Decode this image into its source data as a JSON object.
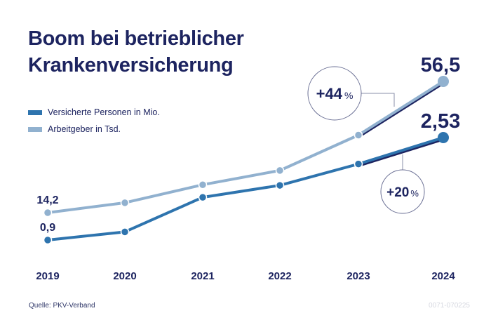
{
  "title_line1": "Boom bei betrieblicher",
  "title_line2": "Krankenversicherung",
  "source": "Quelle: PKV-Verband",
  "code": "0071-070225",
  "chart_data": {
    "type": "line",
    "categories": [
      "2019",
      "2020",
      "2021",
      "2022",
      "2023",
      "2024"
    ],
    "series": [
      {
        "name": "Versicherte Personen in Mio.",
        "color": "#2e74ae",
        "values": [
          0.9,
          1.03,
          1.58,
          1.77,
          2.11,
          2.53
        ],
        "labels": {
          "first": "0,9",
          "last": "2,53"
        }
      },
      {
        "name": "Arbeitgeber in Tsd.",
        "color": "#91b1cf",
        "values": [
          14.2,
          17.4,
          23.2,
          27.8,
          39.2,
          56.5
        ],
        "labels": {
          "first": "14,2",
          "last": "56,5"
        }
      }
    ],
    "annotations": [
      {
        "series": "Arbeitgeber in Tsd.",
        "value": "+44",
        "unit": "%",
        "between": [
          "2023",
          "2024"
        ]
      },
      {
        "series": "Versicherte Personen in Mio.",
        "value": "+20",
        "unit": "%",
        "between": [
          "2023",
          "2024"
        ]
      }
    ],
    "highlight_color": "#1d2460",
    "grid": false
  }
}
